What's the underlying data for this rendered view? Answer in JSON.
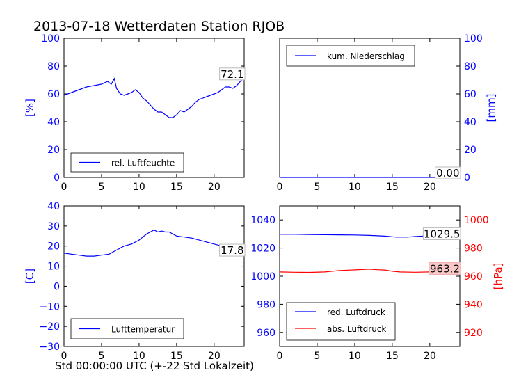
{
  "title": "2013-07-18 Wetterdaten Station RJOB",
  "xlabel_bottom": "Std 00:00:00 UTC (+-22 Std Lokalzeit)",
  "chart_data": [
    {
      "type": "line",
      "panel": "top-left",
      "ylabel": "[%]",
      "ylabel_color": "#0000ff",
      "xlim": [
        0,
        24
      ],
      "ylim": [
        0,
        100
      ],
      "xticks": [
        0,
        5,
        10,
        15,
        20
      ],
      "yticks": [
        0,
        20,
        40,
        60,
        80,
        100
      ],
      "legend": {
        "placement": "lower-left"
      },
      "series": [
        {
          "name": "rel. Luftfeuchte",
          "color": "#0000ff",
          "x": [
            0,
            1,
            2,
            3,
            4,
            5,
            5.8,
            6.3,
            6.7,
            7.0,
            7.5,
            8,
            8.5,
            9,
            9.5,
            10,
            10.5,
            11,
            11.5,
            12,
            12.5,
            13,
            13.5,
            14,
            14.5,
            15,
            15.5,
            16,
            16.5,
            17,
            17.5,
            18,
            18.5,
            19,
            19.5,
            20,
            20.5,
            21,
            21.5,
            22,
            22.5,
            23,
            23.5,
            24
          ],
          "y": [
            59,
            61,
            63,
            65,
            66,
            67,
            69,
            67,
            71,
            64,
            60,
            59,
            60,
            61,
            63,
            61,
            57,
            55,
            52,
            49,
            47,
            47,
            45,
            43,
            43,
            45,
            48,
            47,
            49,
            51,
            54,
            56,
            57,
            58,
            59,
            60,
            61,
            63,
            65,
            65,
            64,
            66,
            69,
            72.1
          ]
        }
      ],
      "end_label": "72.1"
    },
    {
      "type": "line",
      "panel": "top-right",
      "ylabel": "[mm]",
      "ylabel_color": "#0000ff",
      "xlim": [
        0,
        24
      ],
      "ylim": [
        0,
        100
      ],
      "xticks": [
        0,
        5,
        10,
        15,
        20
      ],
      "yticks": [
        0,
        20,
        40,
        60,
        80,
        100
      ],
      "legend": {
        "placement": "upper-left"
      },
      "series": [
        {
          "name": "kum. Niederschlag",
          "color": "#0000ff",
          "x": [
            0,
            24
          ],
          "y": [
            0,
            0
          ]
        }
      ],
      "end_label": "0.00"
    },
    {
      "type": "line",
      "panel": "bottom-left",
      "ylabel": "[C]",
      "ylabel_color": "#0000ff",
      "xlim": [
        0,
        24
      ],
      "ylim": [
        -30,
        40
      ],
      "xticks": [
        0,
        5,
        10,
        15,
        20
      ],
      "yticks": [
        -30,
        -20,
        -10,
        0,
        10,
        20,
        30,
        40
      ],
      "legend": {
        "placement": "lower-left"
      },
      "series": [
        {
          "name": "Lufttemperatur",
          "color": "#0000ff",
          "x": [
            0,
            1,
            2,
            3,
            4,
            5,
            6,
            7,
            8,
            9,
            10,
            10.5,
            11,
            11.5,
            12,
            12.5,
            13,
            13.5,
            14,
            14.5,
            15,
            16,
            17,
            18,
            19,
            20,
            21,
            22,
            23,
            24
          ],
          "y": [
            16.5,
            16,
            15.5,
            15,
            15,
            15.5,
            16,
            18,
            20,
            21,
            23,
            24.5,
            26,
            27,
            28,
            27,
            27.5,
            27,
            27,
            26,
            25,
            24.5,
            24,
            23,
            22,
            21,
            20,
            19.5,
            18.5,
            17.8
          ]
        }
      ],
      "end_label": "17.8"
    },
    {
      "type": "line",
      "panel": "bottom-right",
      "ylabel_right": "[hPa]",
      "ylabel_color": "#ff0000",
      "xlim": [
        0,
        24
      ],
      "ylim": [
        950,
        1050
      ],
      "ylim_right": [
        910,
        1010
      ],
      "xticks": [
        0,
        5,
        10,
        15,
        20
      ],
      "yticks": [
        960,
        980,
        1000,
        1020,
        1040
      ],
      "yticks_right": [
        920,
        940,
        960,
        980,
        1000
      ],
      "legend": {
        "placement": "lower-left"
      },
      "series": [
        {
          "name": "red. Luftdruck",
          "color": "#0000ff",
          "axis": "left",
          "x": [
            0,
            2,
            4,
            6,
            8,
            10,
            12,
            14,
            15.5,
            17,
            18,
            20,
            22,
            24
          ],
          "y": [
            1029.8,
            1029.8,
            1029.6,
            1029.5,
            1029.4,
            1029.3,
            1029,
            1028.5,
            1027.8,
            1027.8,
            1028.2,
            1028.8,
            1029.2,
            1029.5
          ]
        },
        {
          "name": "abs. Luftdruck",
          "color": "#ff0000",
          "axis": "right",
          "x": [
            0,
            2,
            4,
            6,
            8,
            10,
            12,
            13,
            14,
            15,
            16,
            18,
            20,
            22,
            24
          ],
          "y": [
            963,
            962.8,
            962.7,
            963,
            964,
            964.5,
            965,
            964.6,
            964.4,
            963.5,
            963,
            962.8,
            963,
            963.1,
            963.2
          ]
        }
      ],
      "end_label_left": "1029.5",
      "end_label_right": "963.2"
    }
  ]
}
